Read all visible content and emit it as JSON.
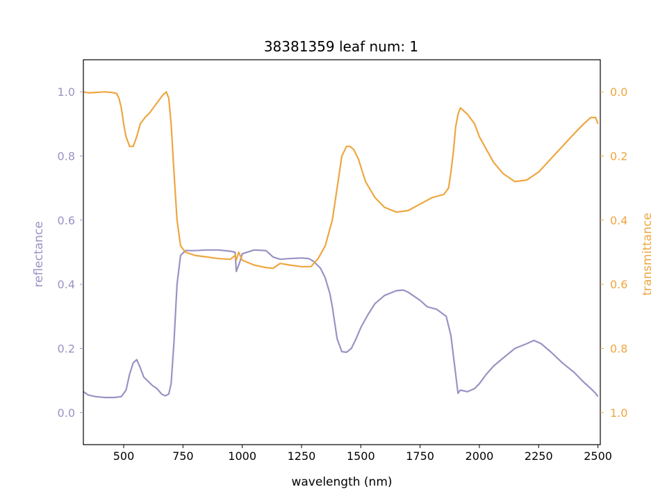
{
  "chart_data": {
    "type": "line",
    "title": "38381359 leaf num: 1",
    "xlabel": "wavelength (nm)",
    "ylabel_left": "reflectance",
    "ylabel_right": "transmittance",
    "xlim": [
      330,
      2510
    ],
    "ylim_left": [
      -0.1,
      1.1
    ],
    "ylim_right": [
      1.1,
      -0.1
    ],
    "right_axis_inverted": true,
    "grid": false,
    "x_ticks": [
      500,
      750,
      1000,
      1250,
      1500,
      1750,
      2000,
      2250,
      2500
    ],
    "y_ticks_left": [
      0.0,
      0.2,
      0.4,
      0.6,
      0.8,
      1.0
    ],
    "y_ticks_right": [
      0.0,
      0.2,
      0.4,
      0.6,
      0.8,
      1.0
    ],
    "colors": {
      "reflectance": "#9893c3",
      "transmittance": "#eea63f",
      "axis": "#000000"
    },
    "series": [
      {
        "name": "reflectance",
        "axis": "left",
        "x": [
          330,
          350,
          380,
          420,
          460,
          490,
          510,
          525,
          540,
          555,
          570,
          585,
          600,
          620,
          640,
          660,
          675,
          690,
          700,
          712,
          725,
          740,
          760,
          800,
          850,
          900,
          950,
          970,
          975,
          990,
          1000,
          1050,
          1100,
          1130,
          1160,
          1200,
          1250,
          1280,
          1300,
          1330,
          1350,
          1370,
          1380,
          1400,
          1420,
          1440,
          1460,
          1480,
          1500,
          1530,
          1560,
          1600,
          1650,
          1680,
          1700,
          1750,
          1780,
          1820,
          1860,
          1880,
          1900,
          1910,
          1920,
          1950,
          1980,
          2000,
          2030,
          2060,
          2100,
          2150,
          2200,
          2230,
          2260,
          2300,
          2350,
          2400,
          2440,
          2470,
          2490,
          2500
        ],
        "y": [
          0.065,
          0.055,
          0.05,
          0.047,
          0.047,
          0.05,
          0.07,
          0.12,
          0.155,
          0.165,
          0.14,
          0.11,
          0.1,
          0.085,
          0.075,
          0.058,
          0.052,
          0.058,
          0.09,
          0.22,
          0.4,
          0.49,
          0.505,
          0.505,
          0.507,
          0.507,
          0.503,
          0.5,
          0.44,
          0.47,
          0.495,
          0.507,
          0.505,
          0.485,
          0.478,
          0.48,
          0.482,
          0.48,
          0.472,
          0.45,
          0.42,
          0.37,
          0.33,
          0.23,
          0.19,
          0.188,
          0.2,
          0.23,
          0.265,
          0.305,
          0.34,
          0.365,
          0.38,
          0.382,
          0.375,
          0.35,
          0.33,
          0.322,
          0.3,
          0.24,
          0.12,
          0.06,
          0.07,
          0.065,
          0.075,
          0.09,
          0.12,
          0.145,
          0.17,
          0.2,
          0.215,
          0.225,
          0.215,
          0.19,
          0.155,
          0.125,
          0.095,
          0.075,
          0.06,
          0.05
        ]
      },
      {
        "name": "transmittance",
        "axis": "right",
        "x": [
          330,
          350,
          380,
          420,
          450,
          470,
          480,
          490,
          500,
          510,
          525,
          540,
          555,
          570,
          590,
          610,
          630,
          650,
          665,
          680,
          690,
          700,
          712,
          725,
          740,
          760,
          800,
          850,
          900,
          950,
          970,
          975,
          985,
          1000,
          1050,
          1100,
          1130,
          1160,
          1200,
          1250,
          1290,
          1320,
          1350,
          1380,
          1400,
          1420,
          1440,
          1455,
          1470,
          1490,
          1520,
          1560,
          1600,
          1650,
          1700,
          1750,
          1800,
          1850,
          1870,
          1880,
          1890,
          1900,
          1910,
          1920,
          1950,
          1980,
          2000,
          2030,
          2060,
          2100,
          2150,
          2200,
          2250,
          2300,
          2350,
          2400,
          2440,
          2470,
          2490,
          2500
        ],
        "y": [
          0.0,
          0.003,
          0.002,
          0.0,
          0.002,
          0.005,
          0.02,
          0.05,
          0.1,
          0.14,
          0.17,
          0.17,
          0.14,
          0.1,
          0.08,
          0.065,
          0.045,
          0.025,
          0.01,
          0.0,
          0.02,
          0.1,
          0.25,
          0.4,
          0.48,
          0.5,
          0.51,
          0.515,
          0.52,
          0.522,
          0.51,
          0.525,
          0.5,
          0.525,
          0.54,
          0.548,
          0.55,
          0.535,
          0.54,
          0.545,
          0.545,
          0.52,
          0.48,
          0.4,
          0.3,
          0.2,
          0.17,
          0.17,
          0.18,
          0.21,
          0.28,
          0.33,
          0.36,
          0.375,
          0.37,
          0.35,
          0.33,
          0.32,
          0.3,
          0.25,
          0.19,
          0.11,
          0.07,
          0.05,
          0.07,
          0.1,
          0.14,
          0.18,
          0.22,
          0.255,
          0.28,
          0.275,
          0.25,
          0.21,
          0.17,
          0.13,
          0.1,
          0.08,
          0.08,
          0.1
        ]
      }
    ]
  }
}
